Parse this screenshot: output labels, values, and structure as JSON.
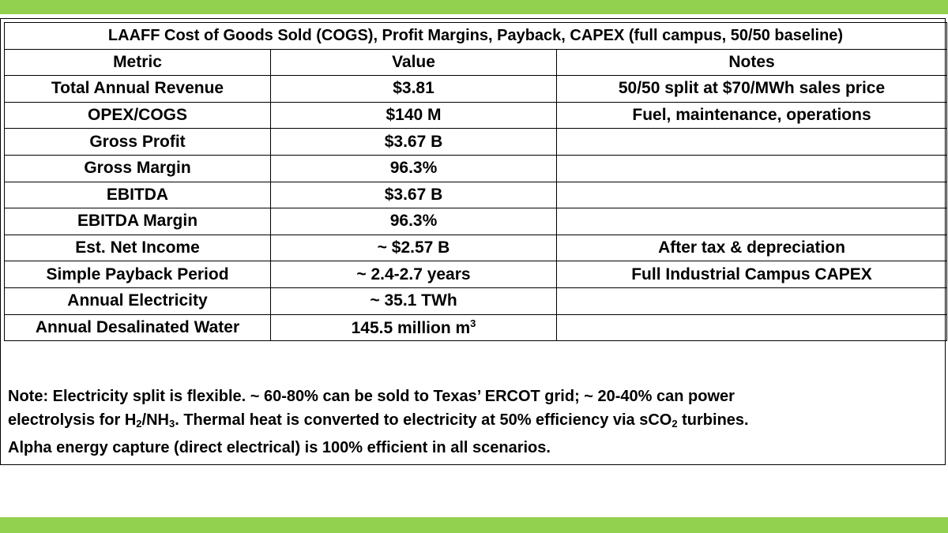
{
  "title": "LAAFF Cost of Goods Sold (COGS), Profit Margins, Payback, CAPEX (full campus, 50/50 baseline)",
  "headers": {
    "metric": "Metric",
    "value": "Value",
    "notes": "Notes"
  },
  "rows": [
    {
      "metric": "Total Annual Revenue",
      "value": "$3.81",
      "notes": "50/50 split at $70/MWh sales price"
    },
    {
      "metric": "OPEX/COGS",
      "value": "$140 M",
      "notes": "Fuel, maintenance, operations"
    },
    {
      "metric": "Gross Profit",
      "value": "$3.67 B",
      "notes": ""
    },
    {
      "metric": "Gross Margin",
      "value": "96.3%",
      "notes": ""
    },
    {
      "metric": "EBITDA",
      "value": "$3.67 B",
      "notes": ""
    },
    {
      "metric": "EBITDA Margin",
      "value": "96.3%",
      "notes": ""
    },
    {
      "metric": "Est. Net Income",
      "value": "~ $2.57 B",
      "notes": "After tax & depreciation"
    },
    {
      "metric": "Simple Payback Period",
      "value": "~ 2.4-2.7 years",
      "notes": "Full Industrial Campus CAPEX"
    },
    {
      "metric": "Annual Electricity",
      "value": "~ 35.1 TWh",
      "notes": ""
    },
    {
      "metric": "Annual Desalinated Water",
      "value": "145.5 million m",
      "value_sup": "3",
      "notes": ""
    }
  ],
  "note": {
    "line1": "Note: Electricity split is flexible. ~ 60-80% can be sold to Texas’ ERCOT grid; ~ 20-40% can power",
    "line2_a": "electrolysis for H",
    "line2_sub1": "2",
    "line2_b": "/NH",
    "line2_sub2": "3",
    "line2_c": ". Thermal heat is converted to electricity at 50% efficiency via sCO",
    "line2_sub3": "2",
    "line2_d": " turbines.",
    "line3": "Alpha energy capture (direct electrical) is 100% efficient in all scenarios."
  },
  "colors": {
    "accent_bar": "#92d050",
    "border": "#000000"
  }
}
